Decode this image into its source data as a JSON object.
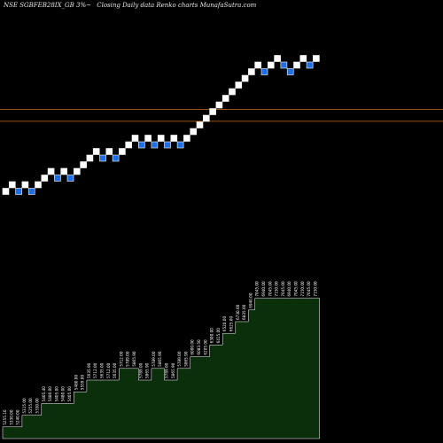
{
  "header": {
    "symbol": "NSE SGBFEB28IX_GB 3%~",
    "description": "Closing Daily data Renko charts MunafaSutra.com"
  },
  "colors": {
    "background": "#000000",
    "up_brick": "#ffffff",
    "down_brick": "#1e6fe6",
    "reference_line": "#c8741c",
    "volume_fill": "#0b2e0b",
    "volume_stroke": "#ffffff",
    "label_text": "#ffffff"
  },
  "chart_data": {
    "type": "renko",
    "title": "",
    "bricks": [
      {
        "level": 0,
        "dir": "up"
      },
      {
        "level": 1,
        "dir": "up"
      },
      {
        "level": 0,
        "dir": "down"
      },
      {
        "level": 1,
        "dir": "up"
      },
      {
        "level": 0,
        "dir": "down"
      },
      {
        "level": 1,
        "dir": "up"
      },
      {
        "level": 2,
        "dir": "up"
      },
      {
        "level": 3,
        "dir": "up"
      },
      {
        "level": 2,
        "dir": "down"
      },
      {
        "level": 3,
        "dir": "up"
      },
      {
        "level": 2,
        "dir": "down"
      },
      {
        "level": 3,
        "dir": "up"
      },
      {
        "level": 4,
        "dir": "up"
      },
      {
        "level": 5,
        "dir": "up"
      },
      {
        "level": 6,
        "dir": "up"
      },
      {
        "level": 5,
        "dir": "down"
      },
      {
        "level": 6,
        "dir": "up"
      },
      {
        "level": 5,
        "dir": "down"
      },
      {
        "level": 6,
        "dir": "up"
      },
      {
        "level": 7,
        "dir": "up"
      },
      {
        "level": 8,
        "dir": "up"
      },
      {
        "level": 7,
        "dir": "down"
      },
      {
        "level": 8,
        "dir": "up"
      },
      {
        "level": 7,
        "dir": "down"
      },
      {
        "level": 8,
        "dir": "up"
      },
      {
        "level": 7,
        "dir": "down"
      },
      {
        "level": 8,
        "dir": "up"
      },
      {
        "level": 7,
        "dir": "down"
      },
      {
        "level": 8,
        "dir": "up"
      },
      {
        "level": 9,
        "dir": "up"
      },
      {
        "level": 10,
        "dir": "up"
      },
      {
        "level": 11,
        "dir": "up"
      },
      {
        "level": 12,
        "dir": "up"
      },
      {
        "level": 13,
        "dir": "up"
      },
      {
        "level": 14,
        "dir": "up"
      },
      {
        "level": 15,
        "dir": "up"
      },
      {
        "level": 16,
        "dir": "up"
      },
      {
        "level": 17,
        "dir": "up"
      },
      {
        "level": 18,
        "dir": "up"
      },
      {
        "level": 19,
        "dir": "up"
      },
      {
        "level": 18,
        "dir": "down"
      },
      {
        "level": 19,
        "dir": "up"
      },
      {
        "level": 20,
        "dir": "up"
      },
      {
        "level": 19,
        "dir": "down"
      },
      {
        "level": 18,
        "dir": "down"
      },
      {
        "level": 19,
        "dir": "up"
      },
      {
        "level": 20,
        "dir": "up"
      },
      {
        "level": 19,
        "dir": "down"
      },
      {
        "level": 20,
        "dir": "up"
      }
    ],
    "reference_levels": [
      12.35,
      10.55
    ],
    "level_range": [
      -1,
      27
    ],
    "brick_labels": [
      "5255.10",
      "5330.00",
      "5240.00",
      "5315.00",
      "5255.00",
      "5330.00",
      "5405.40",
      "5480.00",
      "5405.00",
      "5480.00",
      "5405.00",
      "5480.00",
      "5559.00",
      "5635.90",
      "5712.00",
      "5635.00",
      "5712.00",
      "5635.00",
      "5712.00",
      "5789.00",
      "5865.90",
      "5789.00",
      "5865.90",
      "5789.00",
      "5865.90",
      "5789.00",
      "5865.90",
      "5789.00",
      "5865.90",
      "6000.00",
      "6083.50",
      "6205.00",
      "6300.00",
      "6415.00",
      "6520.00",
      "6625.00",
      "6730.00",
      "6835.00",
      "6940.00",
      "7045.00",
      "6940.00",
      "7045.00",
      "7150.00",
      "7045.00",
      "6940.00",
      "7045.00",
      "7150.00",
      "7045.00",
      "7150.00"
    ],
    "volume_levels": [
      1,
      1,
      1,
      2,
      2,
      2,
      3,
      3,
      3,
      3,
      3,
      4,
      4,
      5,
      5,
      5,
      5,
      5,
      6,
      6,
      6,
      5,
      5,
      6,
      6,
      5,
      5,
      6,
      6,
      7,
      7,
      7,
      8,
      8,
      9,
      9,
      10,
      10,
      11,
      12,
      12,
      12,
      12,
      12,
      12,
      12,
      12,
      12,
      12
    ],
    "volume_range": [
      0,
      40
    ]
  }
}
